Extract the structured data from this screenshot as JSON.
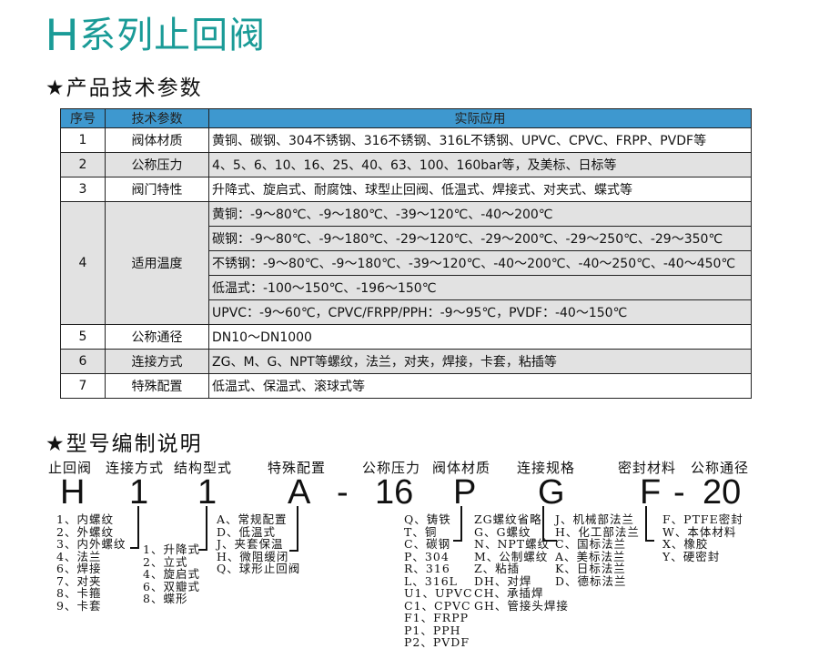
{
  "title": {
    "letter": "H",
    "rest": "系列止回阀"
  },
  "section1": "★产品技术参数",
  "table": {
    "headers": [
      "序号",
      "技术参数",
      "实际应用"
    ],
    "rows": [
      {
        "no": "1",
        "param": "阀体材质",
        "value": "黄铜、碳钢、304不锈钢、316不锈钢、316L不锈钢、UPVC、CPVC、FRPP、PVDF等"
      },
      {
        "no": "2",
        "param": "公称压力",
        "value": "4、5、6、10、16、25、40、63、100、160bar等，及美标、日标等"
      },
      {
        "no": "3",
        "param": "阀门特性",
        "value": "升降式、旋启式、耐腐蚀、球型止回阀、低温式、焊接式、对夹式、蝶式等"
      },
      {
        "no": "4",
        "param": "适用温度",
        "values": [
          "黄铜：-9～80℃、-9～180℃、-39～120℃、-40～200℃",
          "碳钢：-9～80℃、-9～180℃、-29～120℃、-29～200℃、-29～250℃、-29～350℃",
          "不锈钢：-9～80℃、-9～180℃、-39～120℃、-40～200℃、-40～250℃、-40～450℃",
          "低温式：-100～150℃、-196～150℃",
          "UPVC：-9～60℃，CPVC/FRPP/PPH：-9～95℃，PVDF：-40～150℃"
        ]
      },
      {
        "no": "5",
        "param": "公称通径",
        "value": "DN10～DN1000"
      },
      {
        "no": "6",
        "param": "连接方式",
        "value": "ZG、M、G、NPT等螺纹，法兰，对夹，焊接，卡套，粘插等"
      },
      {
        "no": "7",
        "param": "特殊配置",
        "value": "低温式、保温式、滚球式等"
      }
    ]
  },
  "section2": "★型号编制说明",
  "model": {
    "labels": [
      "止回阀",
      "连接方式",
      "结构型式",
      "特殊配置",
      "公称压力",
      "阀体材质",
      "连接规格",
      "密封材料",
      "公称通径"
    ],
    "code": [
      "H",
      "1",
      "1",
      "A",
      "-",
      "16",
      "P",
      "G",
      "F",
      "-",
      "20"
    ],
    "lists": {
      "connection": "1、内螺纹\n2、外螺纹\n3、内外螺纹\n4、法兰\n6、焊接\n7、对夹\n8、卡箍\n9、卡套",
      "structure": "1、升降式\n2、立式\n4、旋启式\n6、双瓣式\n8、蝶形",
      "special": "A、常规配置\nD、低温式\nJ、夹套保温\nH、微阻缓闭\nQ、球形止回阀",
      "material": "Q、铸铁\nT、铜\nC、碳钢\nP、304\nR、316\nL、316L\nU1、UPVC\nC1、CPVC\nF1、FRPP\nP1、PPH\nP2、PVDF",
      "thread": "ZG螺纹省略\nG、G螺纹\nN、NPT螺纹\nM、公制螺纹\nZ、粘插\nDH、对焊\nCH、承插焊\nGH、管接头焊接",
      "flange": "J、机械部法兰\nH、化工部法兰\nC、国标法兰\nA、美标法兰\nK、日标法兰\nD、德标法兰",
      "seal": "F、PTFE密封\nW、本体材料\nX、橡胶\nY、硬密封"
    }
  }
}
